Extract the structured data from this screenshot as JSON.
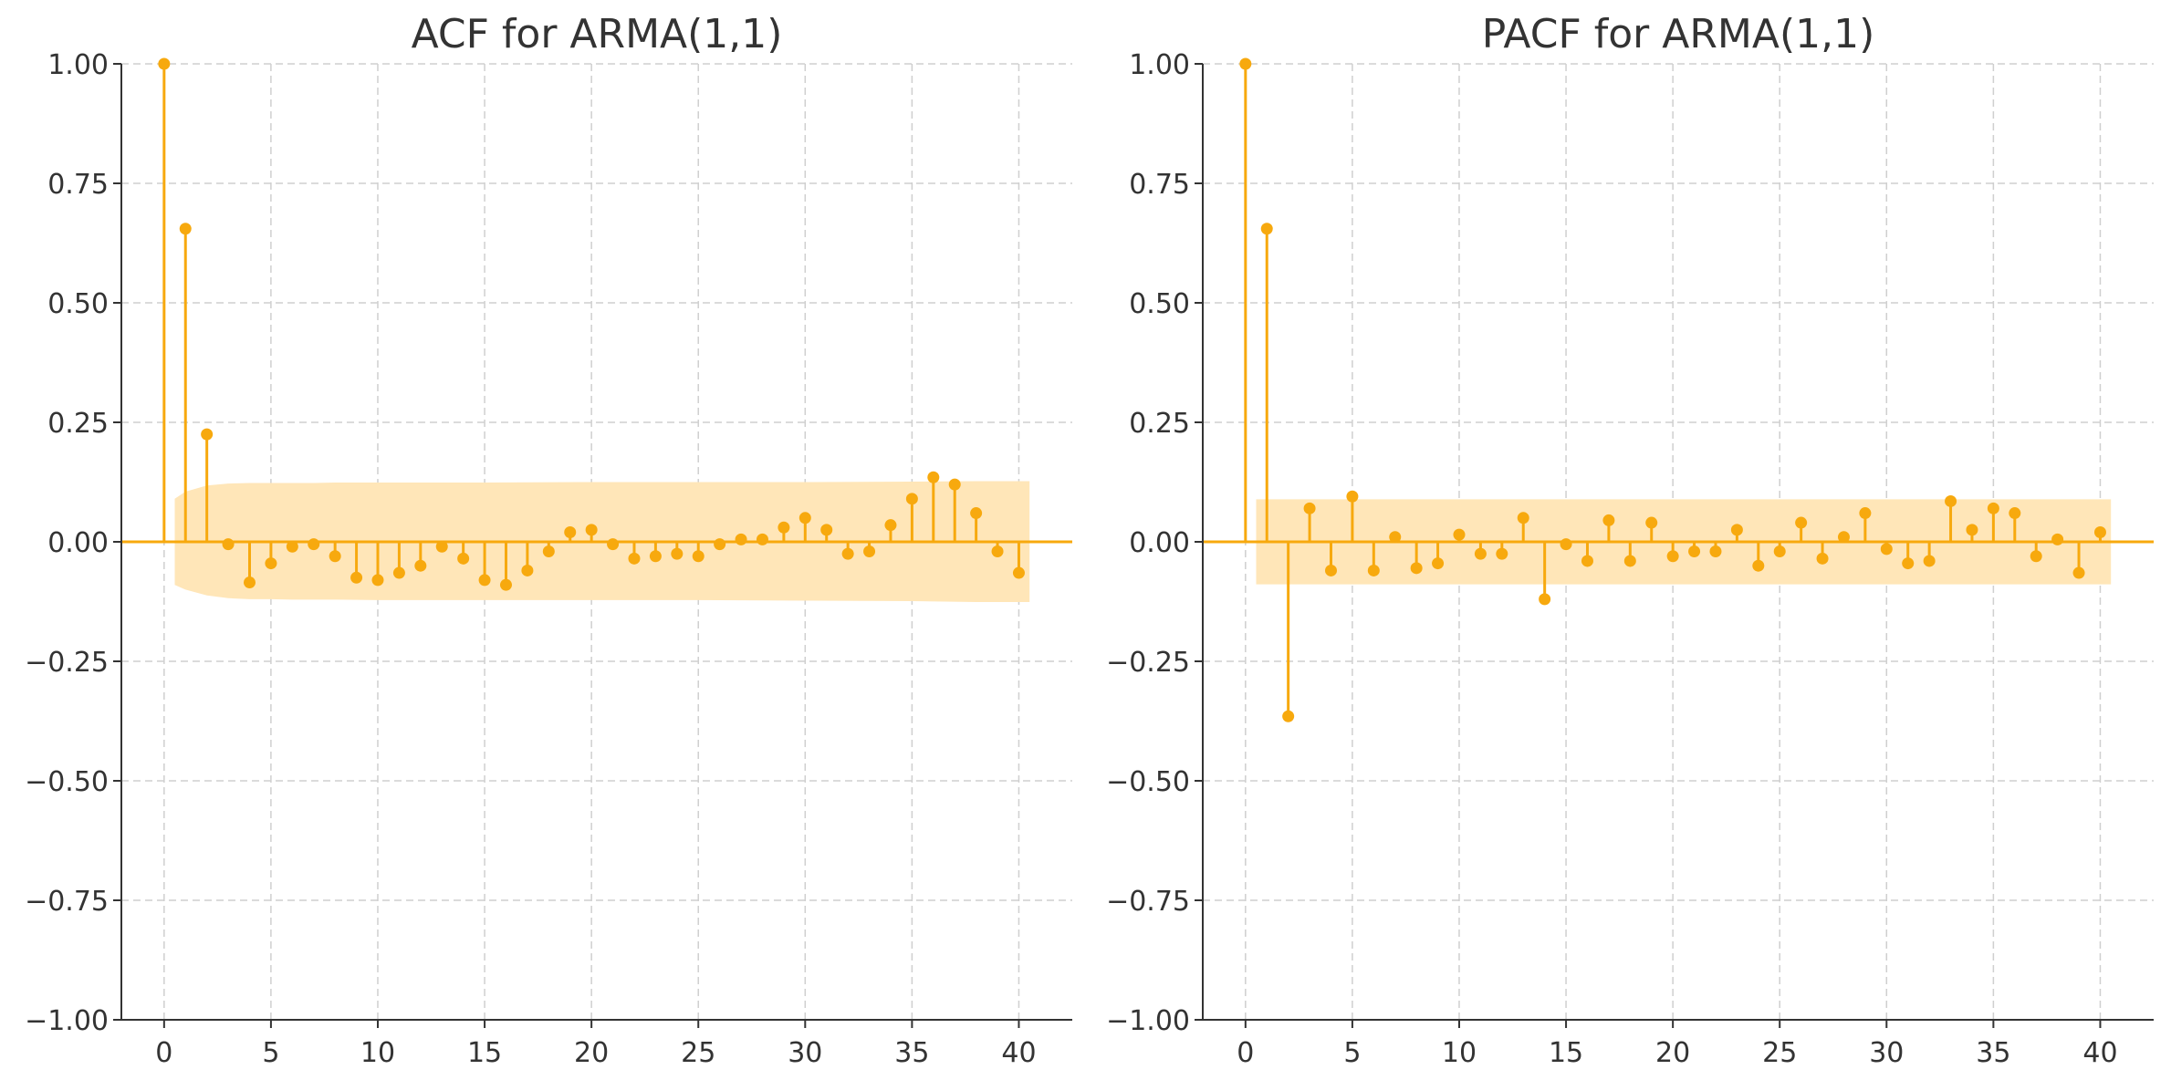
{
  "colors": {
    "stem": "#f7a90e",
    "band": "#ffe6b8",
    "zero_line": "#f7a90e"
  },
  "chart_data": [
    {
      "type": "stem",
      "title": "ACF for ARMA(1,1)",
      "xlabel": "",
      "ylabel": "",
      "xlim": [
        -2,
        42.5
      ],
      "ylim": [
        -1.0,
        1.0
      ],
      "x_ticks": [
        0,
        5,
        10,
        15,
        20,
        25,
        30,
        35,
        40
      ],
      "y_ticks": [
        -1.0,
        -0.75,
        -0.5,
        -0.25,
        0.0,
        0.25,
        0.5,
        0.75,
        1.0
      ],
      "y_tick_labels": [
        "−1.00",
        "−0.75",
        "−0.50",
        "−0.25",
        "0.00",
        "0.25",
        "0.50",
        "0.75",
        "1.00"
      ],
      "grid": true,
      "lags": [
        0,
        1,
        2,
        3,
        4,
        5,
        6,
        7,
        8,
        9,
        10,
        11,
        12,
        13,
        14,
        15,
        16,
        17,
        18,
        19,
        20,
        21,
        22,
        23,
        24,
        25,
        26,
        27,
        28,
        29,
        30,
        31,
        32,
        33,
        34,
        35,
        36,
        37,
        38,
        39,
        40
      ],
      "values": [
        1.0,
        0.655,
        0.225,
        -0.005,
        -0.085,
        -0.045,
        -0.01,
        -0.005,
        -0.03,
        -0.075,
        -0.08,
        -0.065,
        -0.05,
        -0.01,
        -0.035,
        -0.08,
        -0.09,
        -0.06,
        -0.02,
        0.02,
        0.025,
        -0.005,
        -0.035,
        -0.03,
        -0.025,
        -0.03,
        -0.005,
        0.005,
        0.005,
        0.03,
        0.05,
        0.025,
        -0.025,
        -0.02,
        0.035,
        0.09,
        0.135,
        0.12,
        0.06,
        -0.02,
        -0.065
      ],
      "confidence_band": {
        "x": [
          0.5,
          1,
          2,
          3,
          4,
          5,
          6,
          7,
          8,
          10,
          15,
          20,
          25,
          30,
          35,
          38,
          39,
          40,
          40.5
        ],
        "upper": [
          0.09,
          0.105,
          0.118,
          0.122,
          0.123,
          0.123,
          0.123,
          0.123,
          0.124,
          0.124,
          0.124,
          0.125,
          0.125,
          0.125,
          0.126,
          0.127,
          0.127,
          0.127,
          0.127
        ],
        "lower": [
          -0.09,
          -0.1,
          -0.112,
          -0.118,
          -0.12,
          -0.12,
          -0.121,
          -0.121,
          -0.121,
          -0.122,
          -0.122,
          -0.122,
          -0.122,
          -0.123,
          -0.124,
          -0.126,
          -0.126,
          -0.126,
          -0.126
        ]
      }
    },
    {
      "type": "stem",
      "title": "PACF for ARMA(1,1)",
      "xlabel": "",
      "ylabel": "",
      "xlim": [
        -2,
        42.5
      ],
      "ylim": [
        -1.0,
        1.0
      ],
      "x_ticks": [
        0,
        5,
        10,
        15,
        20,
        25,
        30,
        35,
        40
      ],
      "y_ticks": [
        -1.0,
        -0.75,
        -0.5,
        -0.25,
        0.0,
        0.25,
        0.5,
        0.75,
        1.0
      ],
      "y_tick_labels": [
        "−1.00",
        "−0.75",
        "−0.50",
        "−0.25",
        "0.00",
        "0.25",
        "0.50",
        "0.75",
        "1.00"
      ],
      "grid": true,
      "lags": [
        0,
        1,
        2,
        3,
        4,
        5,
        6,
        7,
        8,
        9,
        10,
        11,
        12,
        13,
        14,
        15,
        16,
        17,
        18,
        19,
        20,
        21,
        22,
        23,
        24,
        25,
        26,
        27,
        28,
        29,
        30,
        31,
        32,
        33,
        34,
        35,
        36,
        37,
        38,
        39,
        40
      ],
      "values": [
        1.0,
        0.655,
        -0.365,
        0.07,
        -0.06,
        0.095,
        -0.06,
        0.01,
        -0.055,
        -0.045,
        0.015,
        -0.025,
        -0.025,
        0.05,
        -0.12,
        -0.005,
        -0.04,
        0.045,
        -0.04,
        0.04,
        -0.03,
        -0.02,
        -0.02,
        0.025,
        -0.05,
        -0.02,
        0.04,
        -0.035,
        0.01,
        0.06,
        -0.015,
        -0.045,
        -0.04,
        0.085,
        0.025,
        0.07,
        0.06,
        -0.03,
        0.005,
        -0.065,
        0.02
      ],
      "confidence_band": {
        "x": [
          0.5,
          40.5
        ],
        "upper": [
          0.089,
          0.089
        ],
        "lower": [
          -0.089,
          -0.089
        ]
      }
    }
  ]
}
